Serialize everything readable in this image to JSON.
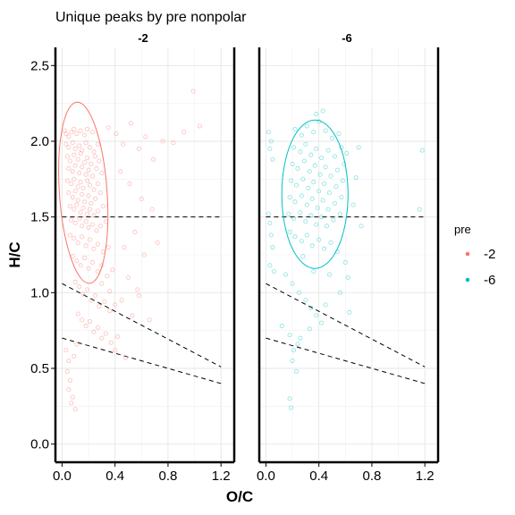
{
  "chart_data": {
    "type": "scatter",
    "title": "Unique peaks by pre nonpolar",
    "xlabel": "O/C",
    "ylabel": "H/C",
    "xlim": [
      -0.05,
      1.3
    ],
    "ylim": [
      -0.12,
      2.62
    ],
    "x_ticks": [
      {
        "value": 0.0,
        "label": "0.0"
      },
      {
        "value": 0.4,
        "label": "0.4"
      },
      {
        "value": 0.8,
        "label": "0.8"
      },
      {
        "value": 1.2,
        "label": "1.2"
      }
    ],
    "y_ticks": [
      {
        "value": 0.0,
        "label": "0.0"
      },
      {
        "value": 0.5,
        "label": "0.5"
      },
      {
        "value": 1.0,
        "label": "1.0"
      },
      {
        "value": 1.5,
        "label": "1.5"
      },
      {
        "value": 2.0,
        "label": "2.0"
      },
      {
        "value": 2.5,
        "label": "2.5"
      }
    ],
    "grid": true,
    "legend": {
      "title": "pre",
      "position": "right",
      "entries": [
        {
          "label": "-2",
          "color": "#F8766D"
        },
        {
          "label": "-6",
          "color": "#00BFC4"
        }
      ]
    },
    "reference_lines": [
      {
        "x": [
          0.0,
          1.2
        ],
        "y": [
          1.5,
          1.5
        ],
        "style": "dashed"
      },
      {
        "x": [
          0.0,
          1.2
        ],
        "y": [
          1.06,
          0.51
        ],
        "style": "dashed"
      },
      {
        "x": [
          0.0,
          1.2
        ],
        "y": [
          0.7,
          0.4
        ],
        "style": "dashed"
      }
    ],
    "panels": [
      {
        "label": "-2",
        "color": "#F8766D",
        "ellipse": {
          "cx": 0.16,
          "cy": 1.66,
          "rx": 0.18,
          "ry": 0.6,
          "angle": -4
        },
        "points": [
          [
            0.02,
            2.07
          ],
          [
            0.03,
            2.05
          ],
          [
            0.05,
            2.03
          ],
          [
            0.07,
            2.06
          ],
          [
            0.09,
            2.08
          ],
          [
            0.11,
            2.05
          ],
          [
            0.14,
            2.07
          ],
          [
            0.17,
            2.04
          ],
          [
            0.19,
            2.08
          ],
          [
            0.23,
            2.06
          ],
          [
            0.03,
            1.98
          ],
          [
            0.05,
            1.96
          ],
          [
            0.08,
            1.99
          ],
          [
            0.1,
            1.95
          ],
          [
            0.13,
            1.97
          ],
          [
            0.15,
            1.94
          ],
          [
            0.18,
            1.99
          ],
          [
            0.21,
            1.96
          ],
          [
            0.24,
            1.93
          ],
          [
            0.27,
            1.98
          ],
          [
            0.04,
            1.9
          ],
          [
            0.06,
            1.87
          ],
          [
            0.09,
            1.91
          ],
          [
            0.12,
            1.88
          ],
          [
            0.14,
            1.92
          ],
          [
            0.17,
            1.86
          ],
          [
            0.19,
            1.89
          ],
          [
            0.22,
            1.85
          ],
          [
            0.25,
            1.9
          ],
          [
            0.28,
            1.87
          ],
          [
            0.05,
            1.82
          ],
          [
            0.08,
            1.8
          ],
          [
            0.1,
            1.84
          ],
          [
            0.13,
            1.79
          ],
          [
            0.15,
            1.83
          ],
          [
            0.18,
            1.78
          ],
          [
            0.2,
            1.81
          ],
          [
            0.23,
            1.77
          ],
          [
            0.26,
            1.82
          ],
          [
            0.3,
            1.79
          ],
          [
            0.04,
            1.74
          ],
          [
            0.07,
            1.72
          ],
          [
            0.09,
            1.75
          ],
          [
            0.12,
            1.7
          ],
          [
            0.14,
            1.73
          ],
          [
            0.16,
            1.69
          ],
          [
            0.19,
            1.74
          ],
          [
            0.21,
            1.71
          ],
          [
            0.24,
            1.68
          ],
          [
            0.27,
            1.72
          ],
          [
            0.05,
            1.66
          ],
          [
            0.08,
            1.63
          ],
          [
            0.1,
            1.67
          ],
          [
            0.12,
            1.61
          ],
          [
            0.15,
            1.65
          ],
          [
            0.17,
            1.6
          ],
          [
            0.2,
            1.64
          ],
          [
            0.22,
            1.59
          ],
          [
            0.25,
            1.62
          ],
          [
            0.29,
            1.66
          ],
          [
            0.06,
            1.57
          ],
          [
            0.09,
            1.55
          ],
          [
            0.11,
            1.58
          ],
          [
            0.14,
            1.53
          ],
          [
            0.16,
            1.56
          ],
          [
            0.19,
            1.52
          ],
          [
            0.21,
            1.55
          ],
          [
            0.24,
            1.51
          ],
          [
            0.27,
            1.54
          ],
          [
            0.31,
            1.57
          ],
          [
            0.07,
            1.48
          ],
          [
            0.1,
            1.46
          ],
          [
            0.13,
            1.49
          ],
          [
            0.15,
            1.44
          ],
          [
            0.18,
            1.47
          ],
          [
            0.2,
            1.43
          ],
          [
            0.23,
            1.45
          ],
          [
            0.26,
            1.41
          ],
          [
            0.29,
            1.44
          ],
          [
            0.33,
            1.47
          ],
          [
            0.06,
            1.38
          ],
          [
            0.09,
            1.36
          ],
          [
            0.12,
            1.33
          ],
          [
            0.15,
            1.37
          ],
          [
            0.18,
            1.31
          ],
          [
            0.21,
            1.35
          ],
          [
            0.24,
            1.29
          ],
          [
            0.27,
            1.32
          ],
          [
            0.31,
            1.27
          ],
          [
            0.35,
            1.3
          ],
          [
            0.08,
            1.24
          ],
          [
            0.11,
            1.21
          ],
          [
            0.14,
            1.18
          ],
          [
            0.17,
            1.23
          ],
          [
            0.2,
            1.16
          ],
          [
            0.23,
            1.2
          ],
          [
            0.27,
            1.14
          ],
          [
            0.3,
            1.18
          ],
          [
            0.34,
            1.11
          ],
          [
            0.38,
            1.15
          ],
          [
            0.1,
            1.07
          ],
          [
            0.13,
            1.04
          ],
          [
            0.16,
            0.99
          ],
          [
            0.19,
            1.02
          ],
          [
            0.22,
            0.95
          ],
          [
            0.25,
            0.98
          ],
          [
            0.28,
            0.91
          ],
          [
            0.32,
            0.94
          ],
          [
            0.36,
            0.88
          ],
          [
            0.4,
            0.92
          ],
          [
            0.12,
            0.86
          ],
          [
            0.15,
            0.82
          ],
          [
            0.18,
            0.78
          ],
          [
            0.21,
            0.81
          ],
          [
            0.24,
            0.74
          ],
          [
            0.27,
            0.77
          ],
          [
            0.3,
            0.7
          ],
          [
            0.33,
            0.73
          ],
          [
            0.37,
            0.67
          ],
          [
            0.42,
            0.71
          ],
          [
            0.03,
            0.62
          ],
          [
            0.05,
            0.55
          ],
          [
            0.04,
            0.48
          ],
          [
            0.06,
            0.42
          ],
          [
            0.05,
            0.36
          ],
          [
            0.08,
            0.31
          ],
          [
            0.07,
            0.27
          ],
          [
            0.1,
            0.23
          ],
          [
            0.09,
            0.58
          ],
          [
            0.11,
            0.66
          ],
          [
            0.35,
            2.09
          ],
          [
            0.41,
            2.05
          ],
          [
            0.46,
            1.98
          ],
          [
            0.52,
            2.12
          ],
          [
            0.58,
            1.95
          ],
          [
            0.63,
            2.03
          ],
          [
            0.69,
            1.88
          ],
          [
            0.76,
            2.0
          ],
          [
            0.84,
            1.99
          ],
          [
            0.92,
            2.06
          ],
          [
            0.99,
            2.33
          ],
          [
            1.04,
            2.1
          ],
          [
            0.44,
            1.8
          ],
          [
            0.51,
            1.72
          ],
          [
            0.6,
            1.62
          ],
          [
            0.68,
            1.55
          ],
          [
            0.55,
            1.4
          ],
          [
            0.47,
            1.3
          ],
          [
            0.62,
            1.25
          ],
          [
            0.72,
            1.33
          ],
          [
            0.5,
            1.1
          ],
          [
            0.57,
            1.02
          ],
          [
            0.45,
            0.95
          ],
          [
            0.53,
            0.85
          ],
          [
            0.66,
            0.82
          ],
          [
            0.4,
            0.62
          ],
          [
            0.48,
            0.57
          ],
          [
            0.58,
            0.98
          ],
          [
            0.36,
            1.01
          ],
          [
            0.3,
            1.06
          ]
        ]
      },
      {
        "label": "-6",
        "color": "#00BFC4",
        "ellipse": {
          "cx": 0.37,
          "cy": 1.65,
          "rx": 0.25,
          "ry": 0.49,
          "angle": 0
        },
        "points": [
          [
            0.02,
            2.06
          ],
          [
            0.04,
            2.0
          ],
          [
            0.03,
            1.95
          ],
          [
            0.05,
            1.88
          ],
          [
            0.02,
            1.52
          ],
          [
            0.03,
            1.46
          ],
          [
            0.04,
            1.38
          ],
          [
            0.05,
            1.3
          ],
          [
            0.03,
            1.18
          ],
          [
            0.06,
            1.14
          ],
          [
            0.22,
            2.08
          ],
          [
            0.27,
            2.04
          ],
          [
            0.31,
            2.1
          ],
          [
            0.36,
            2.06
          ],
          [
            0.4,
            2.13
          ],
          [
            0.45,
            2.07
          ],
          [
            0.5,
            2.02
          ],
          [
            0.55,
            2.05
          ],
          [
            0.38,
            2.18
          ],
          [
            0.43,
            2.2
          ],
          [
            0.21,
            1.96
          ],
          [
            0.26,
            1.93
          ],
          [
            0.3,
            1.98
          ],
          [
            0.34,
            1.91
          ],
          [
            0.38,
            1.95
          ],
          [
            0.42,
            1.89
          ],
          [
            0.47,
            1.94
          ],
          [
            0.52,
            1.9
          ],
          [
            0.57,
            1.96
          ],
          [
            0.61,
            1.92
          ],
          [
            0.2,
            1.85
          ],
          [
            0.24,
            1.82
          ],
          [
            0.29,
            1.87
          ],
          [
            0.33,
            1.8
          ],
          [
            0.37,
            1.84
          ],
          [
            0.41,
            1.78
          ],
          [
            0.45,
            1.83
          ],
          [
            0.49,
            1.77
          ],
          [
            0.54,
            1.81
          ],
          [
            0.59,
            1.85
          ],
          [
            0.19,
            1.74
          ],
          [
            0.23,
            1.71
          ],
          [
            0.28,
            1.75
          ],
          [
            0.32,
            1.69
          ],
          [
            0.36,
            1.73
          ],
          [
            0.4,
            1.67
          ],
          [
            0.44,
            1.72
          ],
          [
            0.48,
            1.66
          ],
          [
            0.53,
            1.7
          ],
          [
            0.58,
            1.74
          ],
          [
            0.18,
            1.63
          ],
          [
            0.22,
            1.6
          ],
          [
            0.27,
            1.64
          ],
          [
            0.31,
            1.58
          ],
          [
            0.35,
            1.62
          ],
          [
            0.39,
            1.56
          ],
          [
            0.43,
            1.61
          ],
          [
            0.47,
            1.55
          ],
          [
            0.52,
            1.59
          ],
          [
            0.57,
            1.63
          ],
          [
            0.17,
            1.52
          ],
          [
            0.21,
            1.49
          ],
          [
            0.26,
            1.53
          ],
          [
            0.3,
            1.47
          ],
          [
            0.34,
            1.51
          ],
          [
            0.38,
            1.45
          ],
          [
            0.42,
            1.5
          ],
          [
            0.46,
            1.44
          ],
          [
            0.51,
            1.48
          ],
          [
            0.56,
            1.52
          ],
          [
            0.18,
            1.4
          ],
          [
            0.22,
            1.37
          ],
          [
            0.27,
            1.34
          ],
          [
            0.31,
            1.38
          ],
          [
            0.35,
            1.31
          ],
          [
            0.4,
            1.35
          ],
          [
            0.44,
            1.29
          ],
          [
            0.49,
            1.33
          ],
          [
            0.54,
            1.27
          ],
          [
            0.28,
            1.24
          ],
          [
            0.15,
            1.12
          ],
          [
            0.2,
            1.06
          ],
          [
            0.25,
            1.0
          ],
          [
            0.3,
            0.95
          ],
          [
            0.34,
            0.9
          ],
          [
            0.38,
            0.85
          ],
          [
            0.42,
            0.8
          ],
          [
            0.45,
            0.92
          ],
          [
            0.63,
            0.87
          ],
          [
            0.36,
            1.14
          ],
          [
            0.12,
            0.78
          ],
          [
            0.18,
            0.72
          ],
          [
            0.24,
            0.66
          ],
          [
            0.2,
            0.55
          ],
          [
            0.23,
            0.48
          ],
          [
            0.18,
            0.3
          ],
          [
            0.19,
            0.24
          ],
          [
            0.21,
            0.62
          ],
          [
            0.26,
            0.7
          ],
          [
            0.33,
            0.76
          ],
          [
            0.68,
            1.76
          ],
          [
            0.66,
            1.58
          ],
          [
            0.7,
            1.96
          ],
          [
            0.72,
            1.44
          ],
          [
            1.18,
            1.94
          ],
          [
            1.16,
            1.55
          ],
          [
            0.62,
            1.1
          ],
          [
            0.48,
            1.12
          ],
          [
            0.56,
            1.0
          ],
          [
            0.6,
            1.2
          ]
        ]
      }
    ]
  }
}
